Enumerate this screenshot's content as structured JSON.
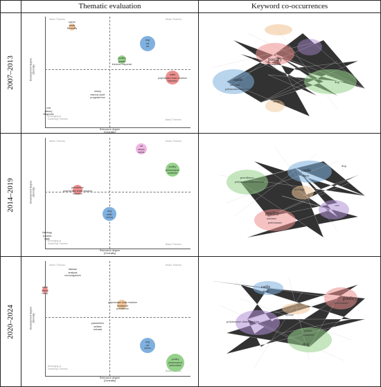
{
  "headers": {
    "col1": "Thematic evaluation",
    "col2": "Keyword co-occurrences"
  },
  "axes": {
    "x_label": "Relevance degree\n(Centrality)",
    "y_label": "Development degree\n(Density)"
  },
  "quadrants": {
    "niche": "Niche Themes",
    "motor": "Motor Themes",
    "basic": "Basic Themes",
    "emerging": "Emerging or\nDeclining Themes"
  },
  "colors": {
    "blue": "#7fb0df",
    "green": "#95d18a",
    "red": "#ec8e8e",
    "orange": "#f2c79a",
    "pink": "#f0b6e3",
    "purple": "#b08fd6",
    "edge": "#c8c8c8"
  },
  "rows": [
    {
      "period": "2007–2013",
      "themes": [
        {
          "id": "r1-sperm",
          "labels": [
            "sperm",
            "testis",
            "fecundity"
          ],
          "color": "orange"
        },
        {
          "id": "r1-dog",
          "labels": [
            "dog",
            "cat",
            "rat"
          ],
          "color": "blue"
        },
        {
          "id": "r1-poultry",
          "labels": [
            "poultry",
            "growth",
            "immune response"
          ],
          "color": "green"
        },
        {
          "id": "r1-cattle",
          "labels": [
            "cattle",
            "polymerase chain reaction",
            "infection"
          ],
          "color": "red"
        },
        {
          "id": "r1-sheep",
          "labels": [
            "sheep",
            "estrous cycle",
            "progesterone"
          ],
          "color": "purple"
        },
        {
          "id": "r1-cow",
          "labels": [
            "cow",
            "dietary",
            "diagnosis"
          ],
          "color": "purple"
        }
      ],
      "network": {
        "nodes": [
          "poultry",
          "immune response",
          "cattle",
          "infection",
          "polymerase chain reaction",
          "sheep",
          "dog"
        ]
      }
    },
    {
      "period": "2014–2019",
      "themes": [
        {
          "id": "r2-rat",
          "labels": [
            "rat",
            "stress",
            "swine"
          ],
          "color": "pink"
        },
        {
          "id": "r2-poultry",
          "labels": [
            "poultry",
            "performance",
            "nutrients"
          ],
          "color": "green"
        },
        {
          "id": "r2-prevalence",
          "labels": [
            "prevalence",
            "polymerase chain reaction",
            "infection"
          ],
          "color": "red"
        },
        {
          "id": "r2-dog",
          "labels": [
            "dog",
            "cattle",
            "sheep"
          ],
          "color": "blue"
        },
        {
          "id": "r2-histology",
          "labels": [
            "histology",
            "zootaxa",
            "eggs"
          ],
          "color": "purple"
        }
      ],
      "network": {
        "nodes": [
          "cattle",
          "sheep",
          "prevalence",
          "polymerase chain reaction",
          "dog",
          "histology",
          "cow",
          "poultry",
          "nutrients",
          "performance"
        ]
      }
    },
    {
      "period": "2020–2024",
      "themes": [
        {
          "id": "r3-cattle",
          "labels": [
            "cattle",
            "sheep",
            "horse"
          ],
          "color": "red"
        },
        {
          "id": "r3-disease",
          "labels": [
            "disease",
            "analysis",
            "microorganism"
          ],
          "color": "purple"
        },
        {
          "id": "r3-pcr",
          "labels": [
            "polymerase chain reaction",
            "resistance",
            "prevalence"
          ],
          "color": "orange"
        },
        {
          "id": "r3-parameters",
          "labels": [
            "parameters",
            "welfare",
            "animals"
          ],
          "color": "purple"
        },
        {
          "id": "r3-dog",
          "labels": [
            "dog",
            "cat",
            "stress"
          ],
          "color": "blue"
        },
        {
          "id": "r3-poultry",
          "labels": [
            "poultry",
            "performance",
            "antioxidant"
          ],
          "color": "green"
        }
      ],
      "network": {
        "nodes": [
          "cattle",
          "sheep",
          "poultry",
          "performance",
          "polymerase chain reaction",
          "disease",
          "dog",
          "welfare",
          "parameters"
        ]
      }
    }
  ]
}
